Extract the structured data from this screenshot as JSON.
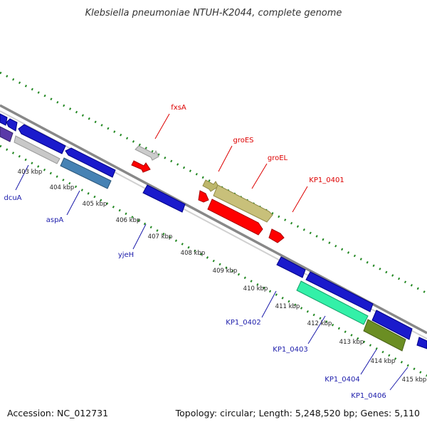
{
  "header": {
    "title": "Klebsiella pneumoniae NTUH-K2044, complete genome"
  },
  "footer": {
    "accession": "Accession: NC_012731",
    "topology": "Topology: circular; Length: 5,248,520 bp; Genes: 5,110"
  },
  "ticks": [
    "403 kbp",
    "404 kbp",
    "405 kbp",
    "406 kbp",
    "407 kbp",
    "408 kbp",
    "409 kbp",
    "410 kbp",
    "411 kbp",
    "412 kbp",
    "413 kbp",
    "414 kbp",
    "415 kbp"
  ],
  "gene_labels_forward": [
    "fxsA",
    "groES",
    "groEL",
    "KP1_0401"
  ],
  "gene_labels_reverse": [
    "dcuA",
    "aspA",
    "yjeH",
    "KP1_0402",
    "KP1_0403",
    "KP1_0404",
    "KP1_0406"
  ],
  "colors": {
    "backbone": "#888888",
    "forward_label": "#dd0000",
    "reverse_label": "#1a1aaa",
    "tick_dots": "#228822"
  }
}
